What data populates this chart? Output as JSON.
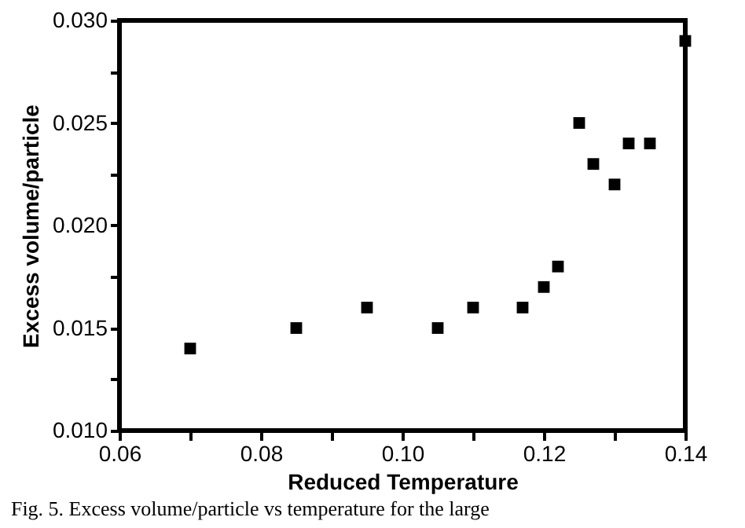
{
  "chart_data": {
    "type": "scatter",
    "xlabel": "Reduced Temperature",
    "ylabel": "Excess volume/particle",
    "x": [
      0.07,
      0.085,
      0.095,
      0.105,
      0.11,
      0.117,
      0.12,
      0.122,
      0.125,
      0.127,
      0.13,
      0.132,
      0.135,
      0.14
    ],
    "values": [
      0.014,
      0.015,
      0.016,
      0.015,
      0.016,
      0.016,
      0.017,
      0.018,
      0.025,
      0.023,
      0.022,
      0.024,
      0.024,
      0.029
    ],
    "color": "#000000",
    "marker": "square",
    "grid": false,
    "xlim": [
      0.06,
      0.14
    ],
    "ylim": [
      0.01,
      0.03
    ],
    "xticks": [
      {
        "value": 0.06,
        "label": "0.06"
      },
      {
        "value": 0.07,
        "label": null
      },
      {
        "value": 0.08,
        "label": "0.08"
      },
      {
        "value": 0.09,
        "label": null
      },
      {
        "value": 0.1,
        "label": "0.10"
      },
      {
        "value": 0.11,
        "label": null
      },
      {
        "value": 0.12,
        "label": "0.12"
      },
      {
        "value": 0.13,
        "label": null
      },
      {
        "value": 0.14,
        "label": "0.14"
      }
    ],
    "yticks": [
      {
        "value": 0.01,
        "label": "0.010"
      },
      {
        "value": 0.0125,
        "label": null
      },
      {
        "value": 0.015,
        "label": "0.015"
      },
      {
        "value": 0.0175,
        "label": null
      },
      {
        "value": 0.02,
        "label": "0.020"
      },
      {
        "value": 0.0225,
        "label": null
      },
      {
        "value": 0.025,
        "label": "0.025"
      },
      {
        "value": 0.0275,
        "label": null
      },
      {
        "value": 0.03,
        "label": "0.030"
      }
    ],
    "annotations": [
      "Fig. 5. Excess volume/particle vs temperature for the large"
    ]
  }
}
